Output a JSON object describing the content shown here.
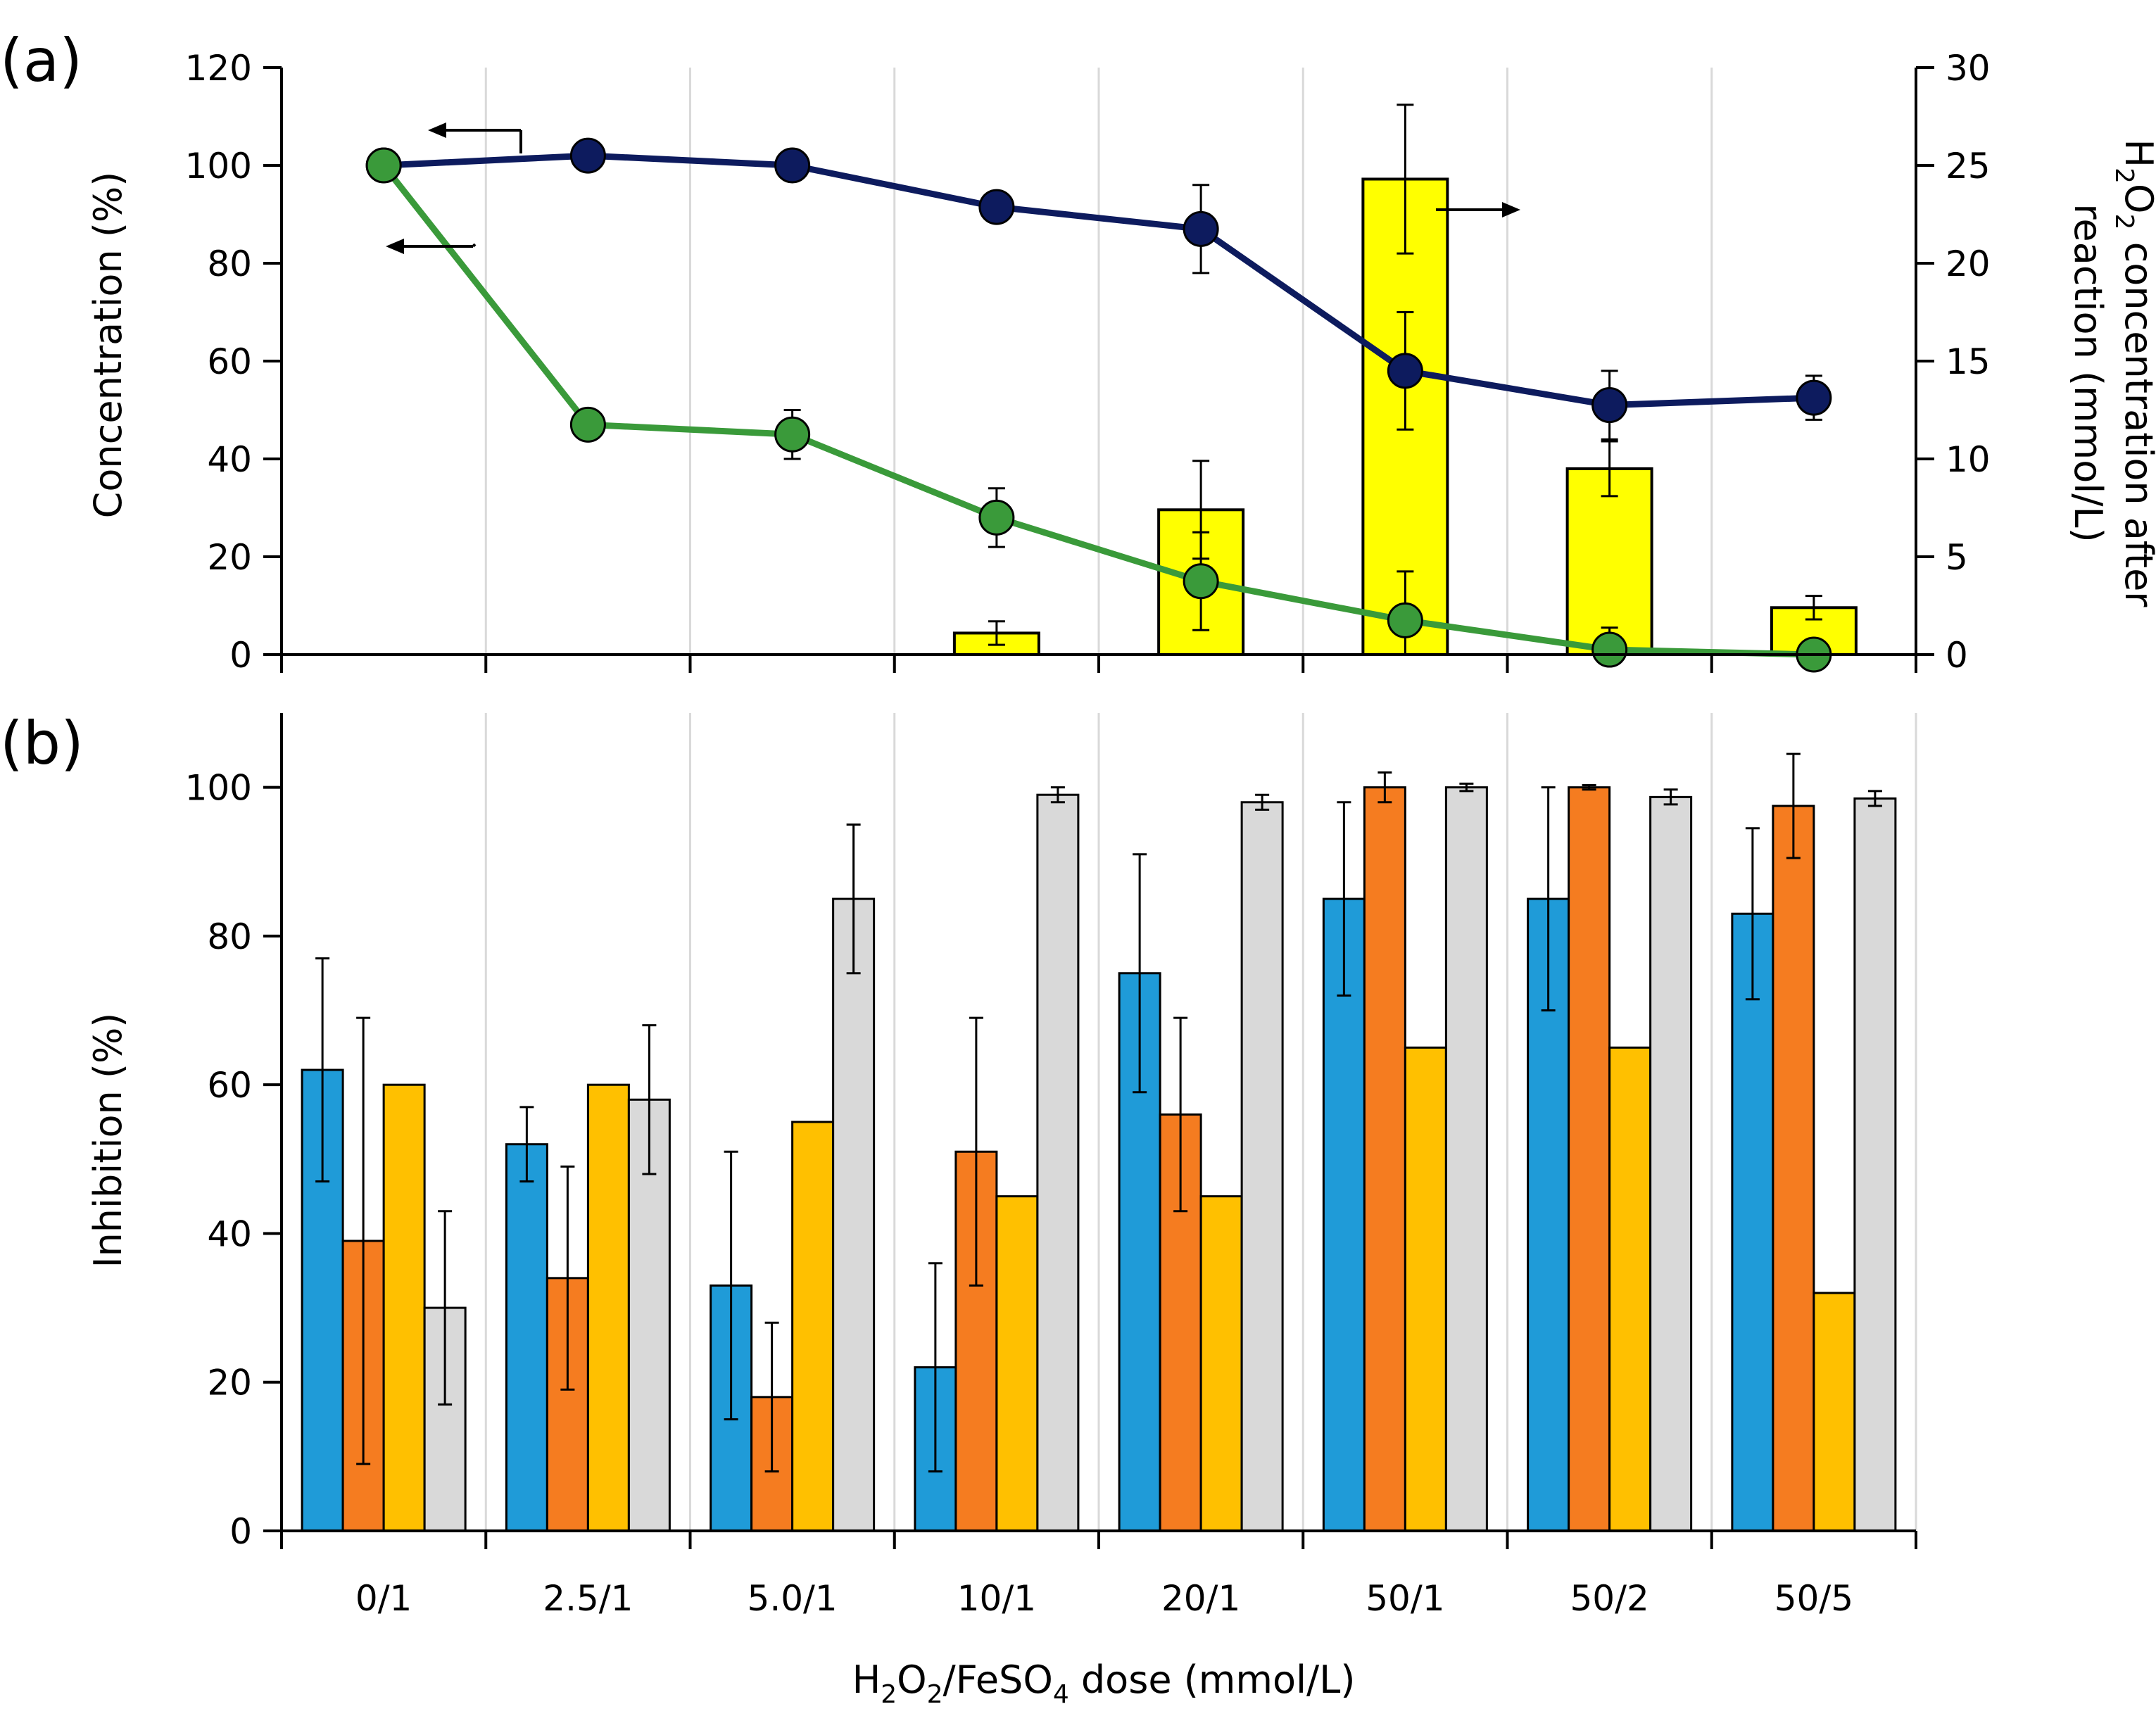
{
  "chart_data": [
    {
      "panel": "(a)",
      "type": "bar",
      "categories": [
        "0/1",
        "2.5/1",
        "5.0/1",
        "10/1",
        "20/1",
        "50/1",
        "50/2",
        "50/5"
      ],
      "ylabel": "Concentration (%)",
      "ylim": [
        0,
        120
      ],
      "yticks": [
        0,
        20,
        40,
        60,
        80,
        100,
        120
      ],
      "y2label_parts": [
        "H",
        "2",
        "O",
        "2",
        " concentration after",
        "reaction (mmol/L)"
      ],
      "y2lim": [
        0,
        30
      ],
      "y2ticks": [
        0,
        5,
        10,
        15,
        20,
        25,
        30
      ],
      "grid": "vertical",
      "line_series": [
        {
          "name": "navy series",
          "axis": "left",
          "color": "#0d1b5e",
          "values": [
            100,
            102,
            100,
            91.5,
            87,
            58,
            51,
            52.5
          ],
          "errors": [
            0,
            3,
            0,
            0,
            9,
            12,
            7,
            4.5
          ]
        },
        {
          "name": "green series",
          "axis": "left",
          "color": "#3a9a3a",
          "values": [
            100,
            47,
            45,
            28,
            15,
            7,
            1,
            0
          ],
          "errors": [
            0,
            0,
            5,
            6,
            10,
            10,
            4.5,
            0
          ]
        }
      ],
      "bar_series": {
        "name": "H2O2 concentration after reaction",
        "axis": "right",
        "color": "#ffff00",
        "values": [
          0,
          0,
          0,
          1.1,
          7.4,
          24.3,
          9.5,
          2.4
        ],
        "errors": [
          0,
          0,
          0,
          0.6,
          2.5,
          3.8,
          1.4,
          0.6
        ]
      }
    },
    {
      "panel": "(b)",
      "type": "bar",
      "categories": [
        "0/1",
        "2.5/1",
        "5.0/1",
        "10/1",
        "20/1",
        "50/1",
        "50/2",
        "50/5"
      ],
      "xlabel_parts": [
        "H",
        "2",
        "O",
        "2",
        "/FeSO",
        "4",
        " dose (mmol/L)"
      ],
      "ylabel": "Inhibition (%)",
      "ylim": [
        0,
        110
      ],
      "yticks": [
        0,
        20,
        40,
        60,
        80,
        100
      ],
      "grid": "vertical",
      "series": [
        {
          "name": "blue",
          "color": "#1f9bd8",
          "values": [
            62,
            52,
            33,
            22,
            75,
            85,
            85,
            83
          ],
          "errors": [
            15,
            5,
            18,
            14,
            16,
            13,
            15,
            11.5
          ]
        },
        {
          "name": "orange",
          "color": "#f57c20",
          "values": [
            39,
            34,
            18,
            51,
            56,
            100,
            100,
            97.5
          ],
          "errors": [
            30,
            15,
            10,
            18,
            13,
            2,
            0.3,
            7
          ]
        },
        {
          "name": "gold",
          "color": "#ffc000",
          "values": [
            60,
            60,
            55,
            45,
            45,
            65,
            65,
            32
          ],
          "errors": [
            0,
            0,
            0,
            0,
            0,
            0,
            0,
            0
          ]
        },
        {
          "name": "gray",
          "color": "#d9d9d9",
          "values": [
            30,
            58,
            85,
            99,
            98,
            100,
            98.7,
            98.5
          ],
          "errors": [
            13,
            10,
            10,
            1,
            1,
            0.5,
            1,
            1
          ]
        }
      ]
    }
  ]
}
